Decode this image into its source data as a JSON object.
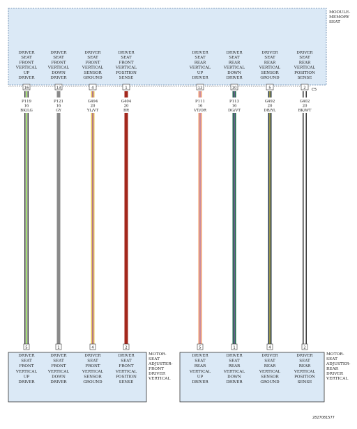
{
  "module": {
    "title_lines": [
      "MODULE-",
      "MEMORY",
      "SEAT"
    ],
    "connector": "C5",
    "fill": "#dbe9f6",
    "border": "#5b7fa8"
  },
  "bottom_left": {
    "title_lines": [
      "MOTOR-",
      "SEAT",
      "ADJUSTER-",
      "FRONT",
      "DRIVER",
      "VERTICAL"
    ]
  },
  "bottom_right": {
    "title_lines": [
      "MOTOR-",
      "SEAT",
      "ADJUSTER-",
      "REAR",
      "DRIVER",
      "VERTICAL"
    ]
  },
  "wires": [
    {
      "pin_top": "16",
      "circuit": "P119",
      "gauge": "16",
      "color_code": "BK/LG",
      "base": "#111111",
      "stripe": "#7fd13b",
      "top_label": [
        "DRIVER",
        "SEAT",
        "FRONT",
        "VERTICAL",
        "UP",
        "DRIVER"
      ],
      "pin_bottom": "5",
      "bottom_label": [
        "DRIVER",
        "SEAT",
        "FRONT",
        "VERTICAL",
        "UP",
        "DRIVER"
      ]
    },
    {
      "pin_top": "13",
      "circuit": "P121",
      "gauge": "16",
      "color_code": "GY",
      "base": "#8a8a8a",
      "stripe": "",
      "top_label": [
        "DRIVER",
        "SEAT",
        "FRONT",
        "VERTICAL",
        "DOWN",
        "DRIVER"
      ],
      "pin_bottom": "1",
      "bottom_label": [
        "DRIVER",
        "SEAT",
        "FRONT",
        "VERTICAL",
        "DOWN",
        "DRIVER"
      ]
    },
    {
      "pin_top": "4",
      "circuit": "G494",
      "gauge": "20",
      "color_code": "YL/VT",
      "base": "#e8c45a",
      "stripe": "#8e44ad",
      "top_label": [
        "DRIVER",
        "SEAT",
        "FRONT",
        "VERTICAL",
        "SENSOR",
        "GROUND"
      ],
      "pin_bottom": "4",
      "bottom_label": [
        "DRIVER",
        "SEAT",
        "FRONT",
        "VERTICAL",
        "SENSOR",
        "GROUND"
      ]
    },
    {
      "pin_top": "1",
      "circuit": "G404",
      "gauge": "20",
      "color_code": "BR",
      "base": "#a3271c",
      "stripe": "",
      "top_label": [
        "DRIVER",
        "SEAT",
        "FRONT",
        "VERTICAL",
        "POSITION",
        "SENSE"
      ],
      "pin_bottom": "2",
      "bottom_label": [
        "DRIVER",
        "SEAT",
        "FRONT",
        "VERTICAL",
        "POSITION",
        "SENSE"
      ]
    },
    {
      "pin_top": "12",
      "circuit": "P111",
      "gauge": "16",
      "color_code": "VT/OR",
      "base": "#f0a070",
      "stripe": "#b07fc0",
      "top_label": [
        "DRIVER",
        "SEAT",
        "REAR",
        "VERTICAL",
        "UP",
        "DRIVER"
      ],
      "pin_bottom": "5",
      "bottom_label": [
        "DRIVER",
        "SEAT",
        "REAR",
        "VERTICAL",
        "UP",
        "DRIVER"
      ]
    },
    {
      "pin_top": "10",
      "circuit": "P113",
      "gauge": "16",
      "color_code": "DG/VT",
      "base": "#1e6a4a",
      "stripe": "#9b59b6",
      "top_label": [
        "DRIVER",
        "SEAT",
        "REAR",
        "VERTICAL",
        "DOWN",
        "DRIVER"
      ],
      "pin_bottom": "1",
      "bottom_label": [
        "DRIVER",
        "SEAT",
        "REAR",
        "VERTICAL",
        "DOWN",
        "DRIVER"
      ]
    },
    {
      "pin_top": "5",
      "circuit": "G492",
      "gauge": "20",
      "color_code": "DB/YL",
      "base": "#2c3e50",
      "stripe": "#e3d04a",
      "top_label": [
        "DRIVER",
        "SEAT",
        "REAR",
        "VERTICAL",
        "SENSOR",
        "GROUND"
      ],
      "pin_bottom": "4",
      "bottom_label": [
        "DRIVER",
        "SEAT",
        "REAR",
        "VERTICAL",
        "SENSOR",
        "GROUND"
      ]
    },
    {
      "pin_top": "2",
      "circuit": "G402",
      "gauge": "20",
      "color_code": "BK/WT",
      "base": "#111111",
      "stripe": "#ffffff",
      "top_label": [
        "DRIVER",
        "SEAT",
        "REAR",
        "VERTICAL",
        "POSITION",
        "SENSE"
      ],
      "pin_bottom": "2",
      "bottom_label": [
        "DRIVER",
        "SEAT",
        "REAR",
        "VERTICAL",
        "POSITION",
        "SENSE"
      ]
    }
  ],
  "footer_id": "2827081577"
}
